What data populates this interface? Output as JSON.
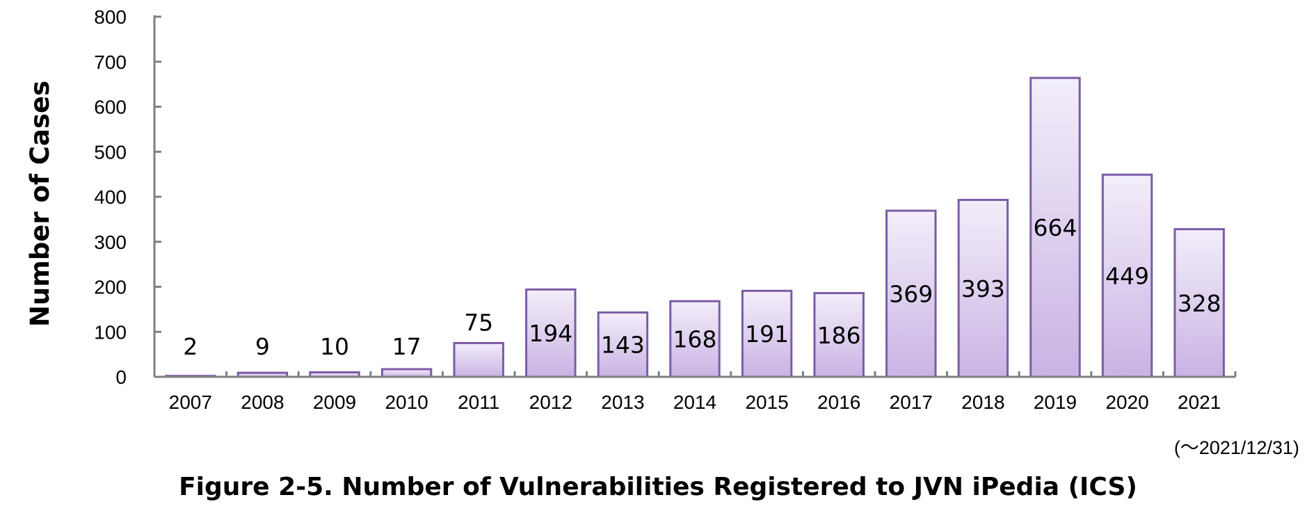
{
  "chart_data": {
    "type": "bar",
    "title": "Figure 2-5. Number of Vulnerabilities Registered to JVN iPedia (ICS)",
    "ylabel": "Number of Cases",
    "xlabel": "",
    "note": "(～2021/12/31)",
    "categories": [
      "2007",
      "2008",
      "2009",
      "2010",
      "2011",
      "2012",
      "2013",
      "2014",
      "2015",
      "2016",
      "2017",
      "2018",
      "2019",
      "2020",
      "2021"
    ],
    "values": [
      2,
      9,
      10,
      17,
      75,
      194,
      143,
      168,
      191,
      186,
      369,
      393,
      664,
      449,
      328
    ],
    "ylim": [
      0,
      800
    ],
    "yticks": [
      0,
      100,
      200,
      300,
      400,
      500,
      600,
      700,
      800
    ],
    "grid": false,
    "legend": "none",
    "colors": {
      "bar_fill_top": "#f3eefa",
      "bar_fill_bottom": "#c9b3e4",
      "bar_stroke": "#7d5ba6",
      "axis": "#7f7f7f"
    }
  }
}
